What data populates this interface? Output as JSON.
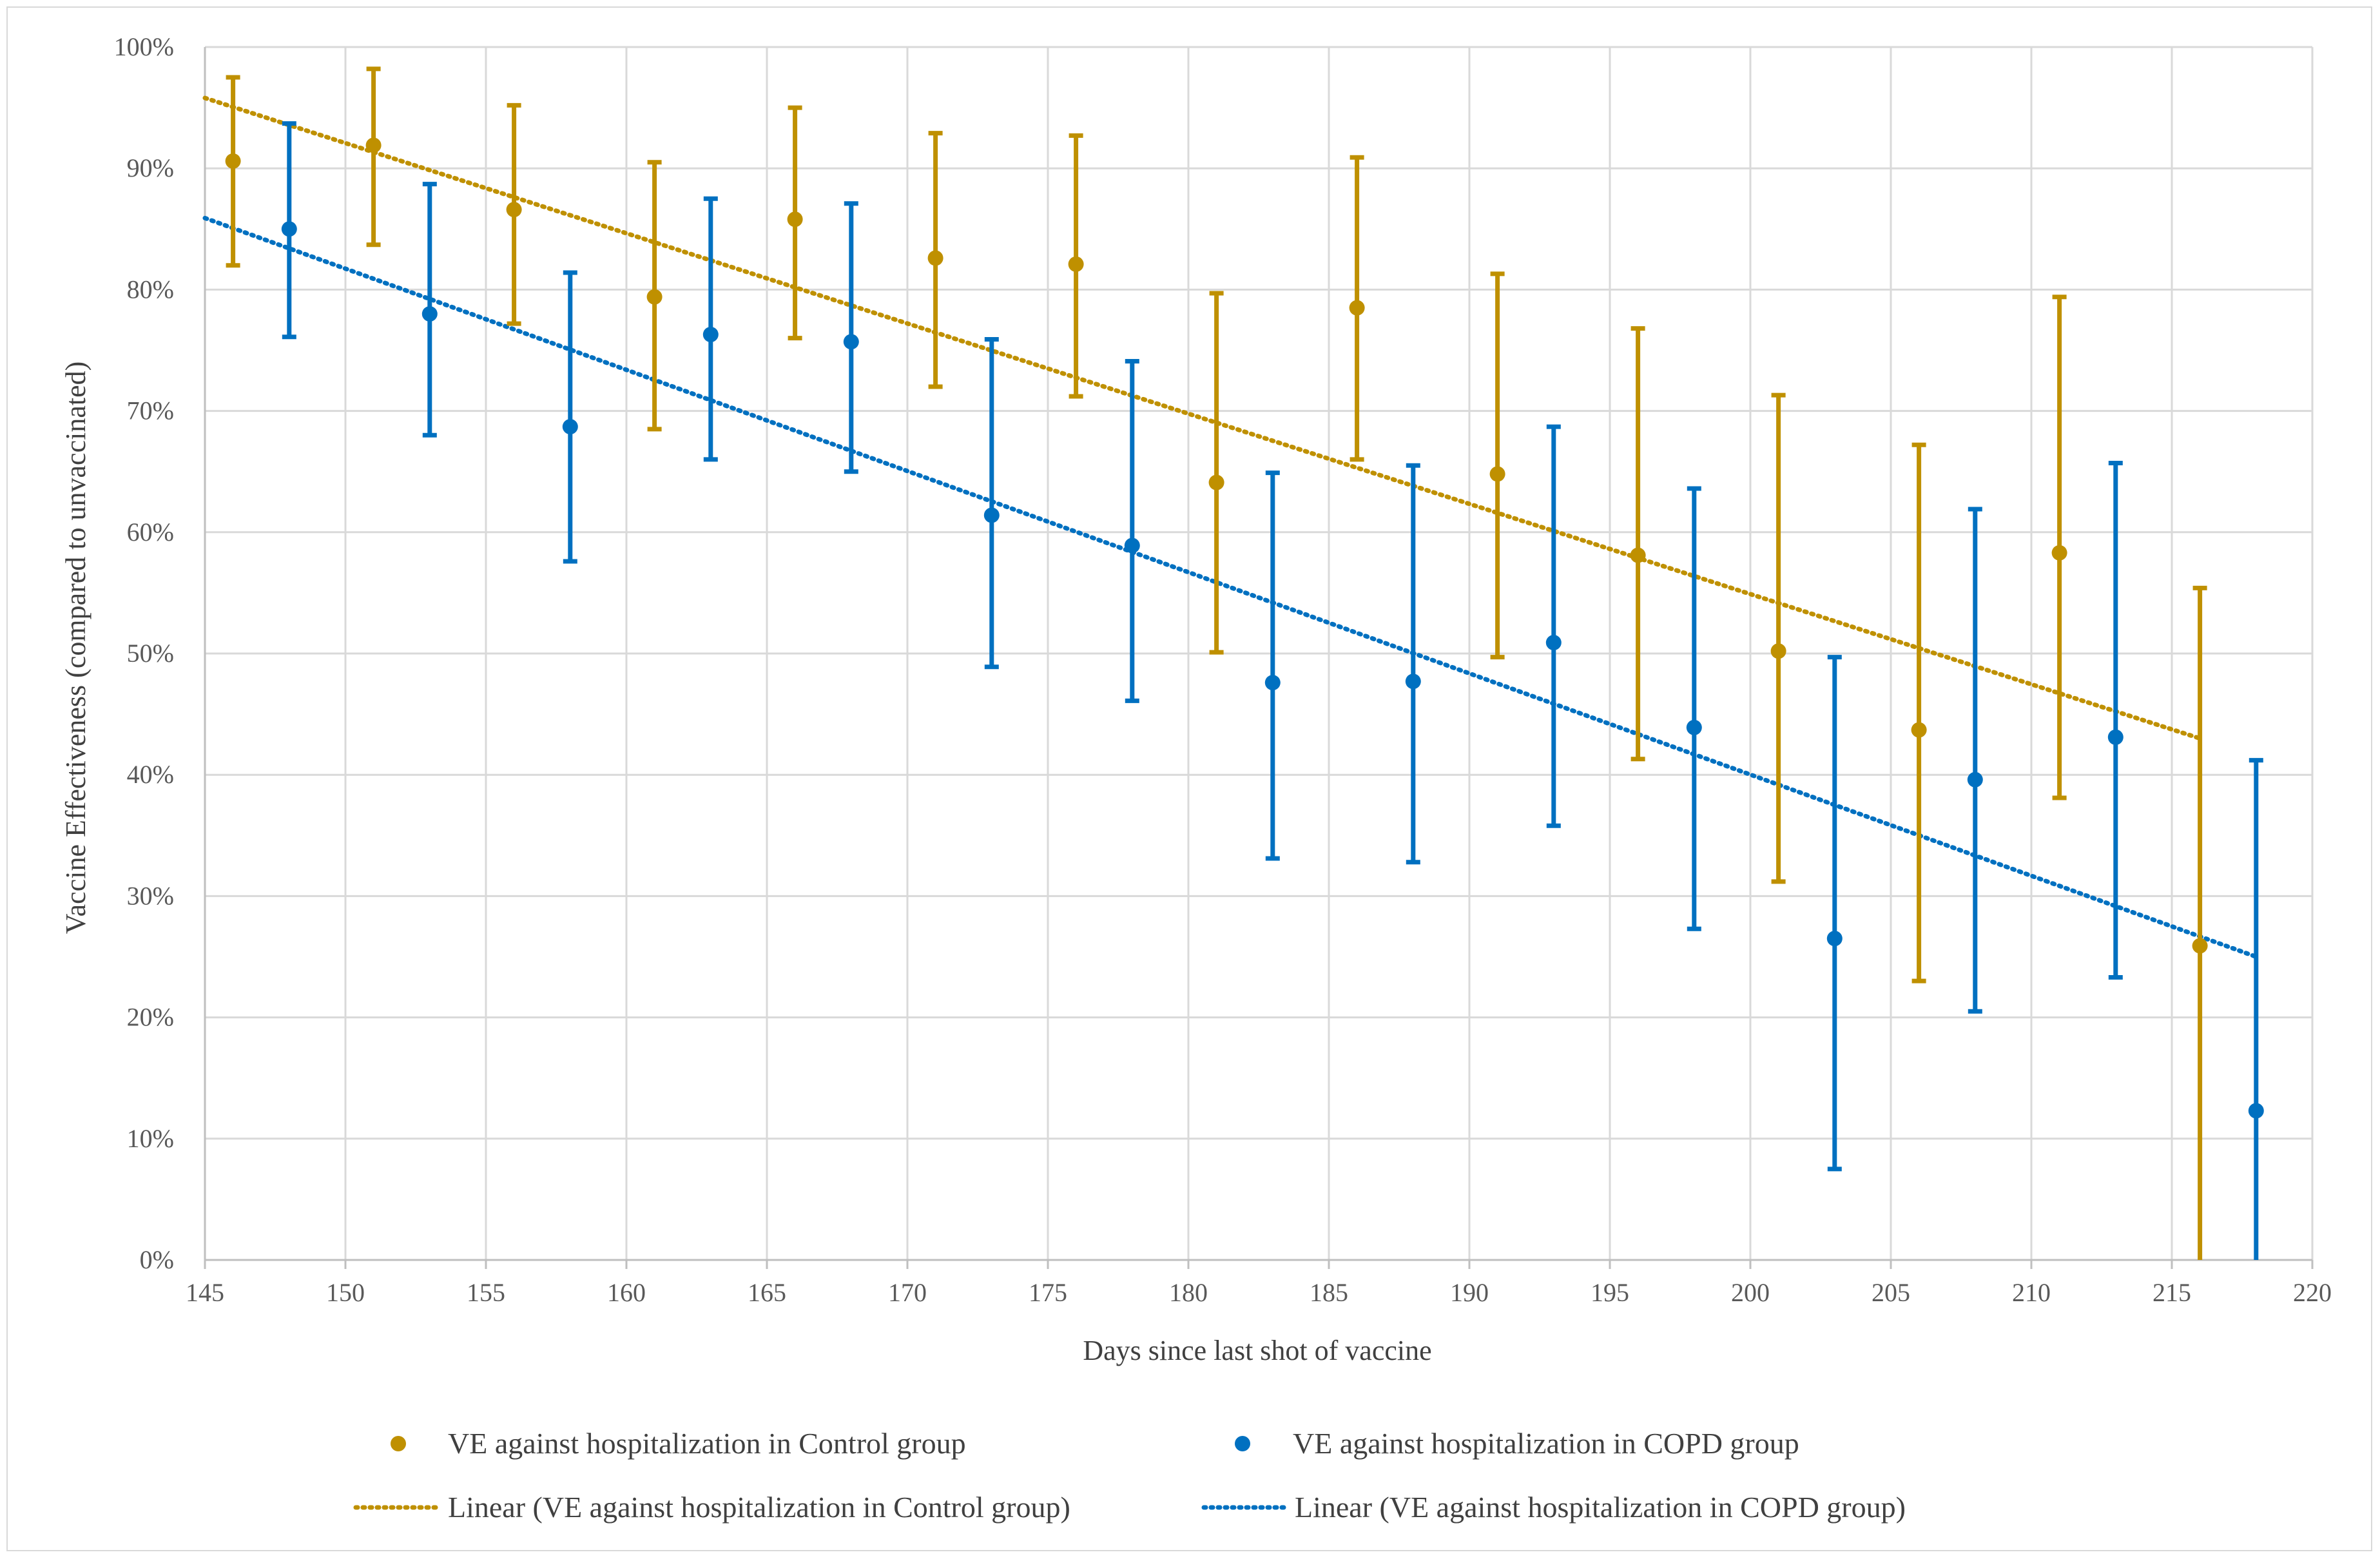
{
  "chart_data": {
    "type": "scatter",
    "title": "",
    "xlabel": "Days since last shot of vaccine",
    "ylabel": "Vaccine Effectiveness (compared to unvaccinated)",
    "xlim": [
      145,
      220
    ],
    "ylim": [
      0,
      100
    ],
    "x_ticks": [
      "145",
      "150",
      "155",
      "160",
      "165",
      "170",
      "175",
      "180",
      "185",
      "190",
      "195",
      "200",
      "205",
      "210",
      "215",
      "220"
    ],
    "y_ticks": [
      "0%",
      "10%",
      "20%",
      "30%",
      "40%",
      "50%",
      "60%",
      "70%",
      "80%",
      "90%",
      "100%"
    ],
    "grid": true,
    "legend_position": "bottom",
    "series": [
      {
        "name": "VE against hospitalization in Control group",
        "color": "#bf9000",
        "x": [
          146,
          151,
          156,
          161,
          166,
          171,
          176,
          181,
          186,
          191,
          196,
          201,
          206,
          211,
          216
        ],
        "values": [
          90.6,
          91.9,
          86.6,
          79.4,
          85.8,
          82.6,
          82.1,
          64.1,
          78.5,
          64.8,
          58.1,
          50.2,
          43.7,
          58.3,
          25.9
        ],
        "lower": [
          82.0,
          83.7,
          77.2,
          68.5,
          76.0,
          72.0,
          71.2,
          50.1,
          66.0,
          49.7,
          41.3,
          31.2,
          23.0,
          38.1,
          0.0
        ],
        "upper": [
          97.5,
          98.2,
          95.2,
          90.5,
          95.0,
          92.9,
          92.7,
          79.7,
          90.9,
          81.3,
          76.8,
          71.3,
          67.2,
          79.4,
          55.4
        ]
      },
      {
        "name": "VE against hospitalization in COPD group",
        "color": "#0070c0",
        "x": [
          148,
          153,
          158,
          163,
          168,
          173,
          178,
          183,
          188,
          193,
          198,
          203,
          208,
          213,
          218
        ],
        "values": [
          85.0,
          78.0,
          68.7,
          76.3,
          75.7,
          61.4,
          58.9,
          47.6,
          47.7,
          50.9,
          43.9,
          26.5,
          39.6,
          43.1,
          12.3
        ],
        "lower": [
          76.1,
          68.0,
          57.6,
          66.0,
          65.0,
          48.9,
          46.1,
          33.1,
          32.8,
          35.8,
          27.3,
          7.5,
          20.5,
          23.3,
          0.0
        ],
        "upper": [
          93.7,
          88.7,
          81.4,
          87.5,
          87.1,
          75.9,
          74.1,
          64.9,
          65.5,
          68.7,
          63.6,
          49.7,
          61.9,
          65.7,
          41.2
        ]
      }
    ],
    "trendlines": [
      {
        "name": "Linear (VE against hospitalization in Control group)",
        "color": "#bf9000",
        "x": [
          145,
          216
        ],
        "y": [
          95.8,
          43.0
        ]
      },
      {
        "name": "Linear (VE against hospitalization in COPD group)",
        "color": "#0070c0",
        "x": [
          145,
          218
        ],
        "y": [
          85.9,
          25.0
        ]
      }
    ]
  }
}
